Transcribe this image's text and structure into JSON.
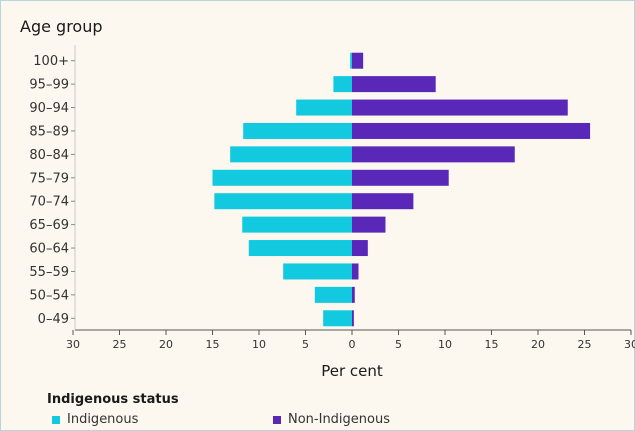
{
  "chart_data": {
    "type": "bar",
    "title": "Age group",
    "xlabel": "Per cent",
    "xlim": [
      -30,
      30
    ],
    "x_ticks": [
      -30,
      -25,
      -20,
      -15,
      -10,
      -5,
      0,
      5,
      10,
      15,
      20,
      25,
      30
    ],
    "x_tick_labels": [
      "30",
      "25",
      "20",
      "15",
      "10",
      "5",
      "0",
      "5",
      "10",
      "15",
      "20",
      "25",
      "30"
    ],
    "categories": [
      "100+",
      "95–99",
      "90–94",
      "85–89",
      "80–84",
      "75–79",
      "70–74",
      "65–69",
      "60–64",
      "55–59",
      "50–54",
      "0–49"
    ],
    "series": [
      {
        "name": "Indigenous",
        "color": "#12c9df",
        "direction": "left",
        "values": [
          0.2,
          2.0,
          6.0,
          11.7,
          13.1,
          15.0,
          14.8,
          11.8,
          11.1,
          7.4,
          4.0,
          3.1
        ]
      },
      {
        "name": "Non-Indigenous",
        "color": "#5a28b8",
        "direction": "right",
        "values": [
          1.2,
          9.0,
          23.2,
          25.6,
          17.5,
          10.4,
          6.6,
          3.6,
          1.7,
          0.7,
          0.3,
          0.2
        ]
      }
    ],
    "legend_title": "Indigenous status",
    "legend_position": "bottom-left",
    "grid": false
  }
}
